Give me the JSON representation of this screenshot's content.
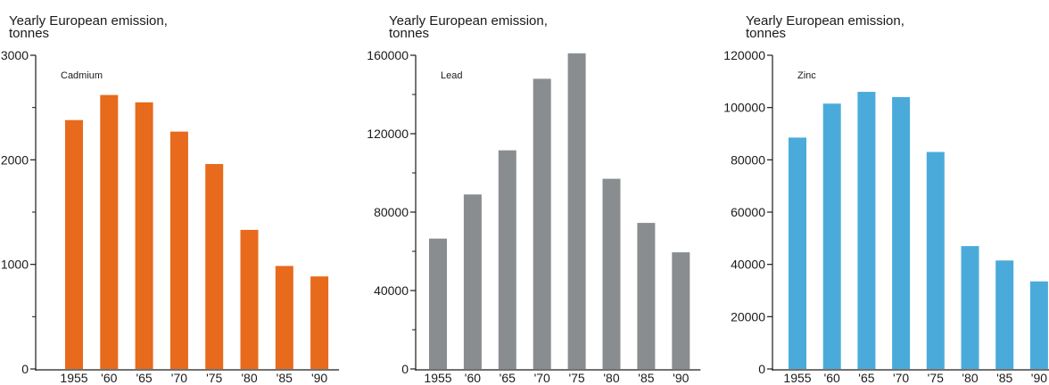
{
  "chart_data": [
    {
      "type": "bar",
      "ylabel_lines": [
        "Yearly European emission,",
        "tonnes"
      ],
      "panel_label": "Cadmium",
      "categories": [
        "1955",
        "'60",
        "'65",
        "'70",
        "'75",
        "'80",
        "'85",
        "'90"
      ],
      "values": [
        2380,
        2620,
        2550,
        2270,
        1960,
        1330,
        985,
        885
      ],
      "yticks": [
        "0",
        "1000",
        "2000",
        "3000"
      ],
      "ylim": [
        0,
        3000
      ],
      "minor_ticks_per_major": 2,
      "bar_color": "#e86a1c"
    },
    {
      "type": "bar",
      "ylabel_lines": [
        "Yearly European emission,",
        "tonnes"
      ],
      "panel_label": "Lead",
      "categories": [
        "1955",
        "'60",
        "'65",
        "'70",
        "'75",
        "'80",
        "'85",
        "'90"
      ],
      "values": [
        66500,
        89000,
        111500,
        148000,
        161000,
        97000,
        74500,
        59500
      ],
      "yticks": [
        "0",
        "40000",
        "80000",
        "120000",
        "160000"
      ],
      "ylim": [
        0,
        160000
      ],
      "minor_ticks_per_major": 2,
      "bar_color": "#8a8d90"
    },
    {
      "type": "bar",
      "ylabel_lines": [
        "Yearly European emission,",
        "tonnes"
      ],
      "panel_label": "Zinc",
      "categories": [
        "1955",
        "'60",
        "'65",
        "'70",
        "'75",
        "'80",
        "'85",
        "'90"
      ],
      "values": [
        88500,
        101500,
        106000,
        104000,
        83000,
        47000,
        41500,
        33500
      ],
      "yticks": [
        "0",
        "20000",
        "40000",
        "60000",
        "80000",
        "100000",
        "120000"
      ],
      "ylim": [
        0,
        120000
      ],
      "minor_ticks_per_major": 1,
      "bar_color": "#4aabdb"
    }
  ]
}
